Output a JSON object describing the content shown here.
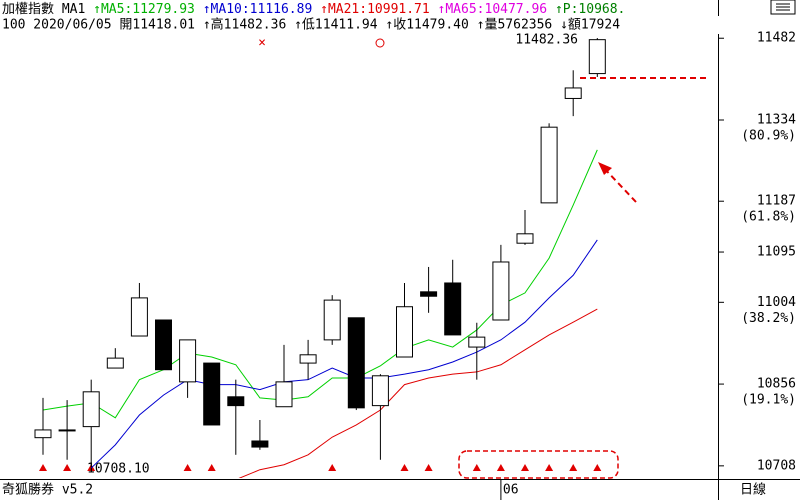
{
  "chart_data": {
    "type": "candlestick",
    "header": {
      "row1": [
        {
          "text": "加權指數 MA1 ",
          "color": "#000000"
        },
        {
          "text": "↑MA5:11279.93 ",
          "color": "#00b000"
        },
        {
          "text": "↑MA10:11116.89 ",
          "color": "#0000d0"
        },
        {
          "text": "↑MA21:10991.71 ",
          "color": "#e00000"
        },
        {
          "text": "↑MA65:10477.96 ",
          "color": "#e000e0"
        },
        {
          "text": "↑P:10968.",
          "color": "#008000"
        }
      ],
      "row2": "100 2020/06/05 開11418.01 ↑高11482.36 ↑低11411.94 ↑收11479.40 ↑量5762356 ↓額17924"
    },
    "categories": [
      null,
      null,
      null,
      null,
      null,
      null,
      null,
      null,
      null,
      null,
      null,
      null,
      null,
      null,
      null,
      null,
      null,
      null,
      null,
      "06",
      null,
      null,
      null,
      null
    ],
    "open": [
      10759,
      10773,
      10779,
      10885,
      10943,
      10972,
      10860,
      10894,
      10833,
      10753,
      10815,
      10894,
      10936,
      10976,
      10817,
      10905,
      11023,
      11039,
      10923,
      10972,
      11111,
      11184,
      11373,
      11418.01
    ],
    "high": [
      10831,
      10827,
      10864,
      10921,
      11039,
      10972,
      10936,
      10894,
      10864,
      10791,
      10927,
      10936,
      11017,
      10976,
      10874,
      11039,
      11068,
      11081,
      10967,
      11108,
      11171,
      11328,
      11424,
      11482.36
    ],
    "low": [
      10728,
      10719,
      10708.1,
      10885,
      10943,
      10882,
      10831,
      10782,
      10728,
      10737,
      10815,
      10864,
      10927,
      10809,
      10719,
      10905,
      10985,
      10945,
      10864,
      10972,
      11108,
      11184,
      11341,
      11411.94
    ],
    "close": [
      10773,
      10773,
      10842,
      10903,
      11012,
      10882,
      10936,
      10782,
      10817,
      10742,
      10860,
      10909,
      11008,
      10813,
      10871,
      10996,
      11015,
      10945,
      10941,
      11077,
      11128,
      11321,
      11392,
      11479.4
    ],
    "lines": [
      {
        "color": "#00d000",
        "values": [
          10809,
          10816,
          10822,
          10795,
          10864,
          10882,
          10912,
          10905,
          10891,
          10831,
          10827,
          10833,
          10867,
          10867,
          10889,
          10921,
          10936,
          10923,
          10954,
          10999,
          11021,
          11084,
          11180,
          11279.93
        ]
      },
      {
        "color": "#0000d0",
        "values": [
          null,
          null,
          10704,
          10746,
          10800,
          10836,
          10864,
          10855,
          10855,
          10846,
          10860,
          10864,
          10885,
          10867,
          10867,
          10874,
          10882,
          10896,
          10914,
          10936,
          10968,
          11012,
          11053,
          11116.89
        ]
      },
      {
        "color": "#e00000",
        "values": [
          null,
          null,
          null,
          null,
          null,
          null,
          null,
          null,
          10683,
          10701,
          10710,
          10728,
          10760,
          10782,
          10809,
          10855,
          10867,
          10874,
          10878,
          10891,
          10918,
          10945,
          10968,
          10991.71
        ]
      }
    ],
    "ylim": [
      10686,
      11515
    ],
    "yticks": [
      10708,
      10856,
      11004,
      11095,
      11187,
      11334,
      11482
    ],
    "ytick_notes": [
      null,
      "(19.1%)",
      "(38.2%)",
      null,
      "(61.8%)",
      "(80.9%)",
      null
    ],
    "annotations": [
      "11482.36",
      "10708.10"
    ],
    "footer": {
      "brand": "奇狐勝券 v5.2",
      "period": "日線"
    }
  }
}
